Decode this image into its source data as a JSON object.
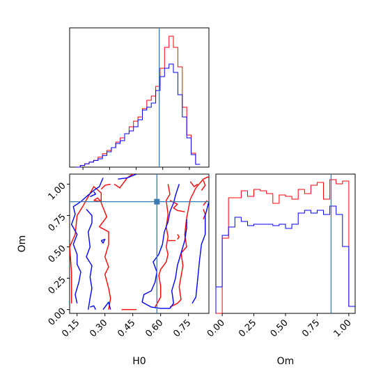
{
  "chart_data": {
    "type": "corner",
    "truth": {
      "H0": 0.58,
      "Om": 0.86,
      "color": "#3a7ab2"
    },
    "series_colors": {
      "red": "#ff0000",
      "blue": "#0000ff"
    },
    "panels": {
      "h0_hist": {
        "type": "step-histogram",
        "xlim": [
          0.075,
          0.86
        ],
        "ylim": [
          0,
          1.0
        ],
        "bin_width": 0.025,
        "bins_start": 0.11,
        "red": [
          0.0,
          0.012,
          0.024,
          0.036,
          0.048,
          0.072,
          0.096,
          0.12,
          0.14,
          0.18,
          0.21,
          0.24,
          0.29,
          0.33,
          0.36,
          0.42,
          0.48,
          0.51,
          0.58,
          0.71,
          0.86,
          0.94,
          0.86,
          0.72,
          0.43,
          0.23,
          0.1,
          0.02
        ],
        "blue": [
          0.0,
          0.012,
          0.024,
          0.036,
          0.048,
          0.06,
          0.084,
          0.11,
          0.14,
          0.17,
          0.19,
          0.24,
          0.26,
          0.29,
          0.34,
          0.41,
          0.43,
          0.46,
          0.55,
          0.65,
          0.71,
          0.74,
          0.68,
          0.52,
          0.36,
          0.21,
          0.09,
          0.02
        ]
      },
      "om_hist": {
        "type": "step-histogram",
        "xlim": [
          -0.05,
          1.05
        ],
        "ylim": [
          0,
          1.0
        ],
        "bin_width": 0.05,
        "bins_start": -0.05,
        "red": [
          0.0,
          0.54,
          0.83,
          0.83,
          0.88,
          0.84,
          0.89,
          0.88,
          0.86,
          0.79,
          0.85,
          0.84,
          0.82,
          0.89,
          0.86,
          0.92,
          0.94,
          0.82,
          0.96,
          0.93,
          0.95,
          0.05
        ],
        "blue": [
          0.19,
          0.56,
          0.62,
          0.69,
          0.66,
          0.63,
          0.64,
          0.64,
          0.64,
          0.63,
          0.64,
          0.61,
          0.64,
          0.72,
          0.74,
          0.72,
          0.74,
          0.71,
          0.77,
          0.71,
          0.48,
          0.05
        ]
      },
      "joint": {
        "type": "contour",
        "xlim": [
          0.11,
          0.86
        ],
        "ylim": [
          -0.03,
          1.08
        ],
        "xlabel": "H0",
        "ylabel": "Om",
        "red_contours": [
          [
            [
              0.12,
              0.05
            ],
            [
              0.12,
              0.3
            ],
            [
              0.11,
              0.5
            ],
            [
              0.14,
              0.6
            ],
            [
              0.15,
              0.75
            ],
            [
              0.18,
              0.82
            ],
            [
              0.21,
              0.9
            ],
            [
              0.24,
              0.98
            ],
            [
              0.28,
              0.93
            ],
            [
              0.28,
              0.85
            ],
            [
              0.31,
              0.74
            ],
            [
              0.27,
              0.66
            ],
            [
              0.32,
              0.62
            ],
            [
              0.32,
              0.52
            ],
            [
              0.3,
              0.42
            ],
            [
              0.32,
              0.34
            ],
            [
              0.3,
              0.28
            ],
            [
              0.32,
              0.17
            ],
            [
              0.33,
              0.09
            ],
            [
              0.32,
              0.0
            ]
          ],
          [
            [
              0.35,
              1.0
            ],
            [
              0.38,
              0.97
            ],
            [
              0.42,
              1.05
            ],
            [
              0.45,
              1.08
            ]
          ],
          [
            [
              0.24,
              0.87
            ],
            [
              0.28,
              0.86
            ],
            [
              0.26,
              0.89
            ],
            [
              0.24,
              0.87
            ]
          ],
          [
            [
              0.28,
              0.96
            ],
            [
              0.3,
              0.99
            ],
            [
              0.33,
              1.0
            ]
          ],
          [
            [
              0.39,
              0.0
            ],
            [
              0.47,
              0.0
            ]
          ],
          [
            [
              0.57,
              0.02
            ],
            [
              0.6,
              0.1
            ],
            [
              0.6,
              0.19
            ],
            [
              0.59,
              0.27
            ],
            [
              0.6,
              0.32
            ],
            [
              0.63,
              0.38
            ],
            [
              0.64,
              0.44
            ],
            [
              0.63,
              0.5
            ],
            [
              0.64,
              0.58
            ],
            [
              0.63,
              0.66
            ],
            [
              0.64,
              0.76
            ],
            [
              0.63,
              0.87
            ],
            [
              0.65,
              0.92
            ],
            [
              0.64,
              1.0
            ]
          ],
          [
            [
              0.65,
              0.02
            ],
            [
              0.69,
              0.05
            ],
            [
              0.71,
              0.08
            ],
            [
              0.7,
              0.18
            ],
            [
              0.72,
              0.35
            ],
            [
              0.71,
              0.45
            ],
            [
              0.74,
              0.5
            ],
            [
              0.73,
              0.6
            ],
            [
              0.74,
              0.73
            ],
            [
              0.76,
              0.88
            ],
            [
              0.79,
              0.97
            ],
            [
              0.83,
              1.04
            ],
            [
              0.86,
              1.06
            ]
          ],
          [
            [
              0.65,
              0.87
            ],
            [
              0.69,
              0.84
            ],
            [
              0.67,
              0.81
            ],
            [
              0.69,
              0.79
            ],
            [
              0.73,
              0.78
            ]
          ],
          [
            [
              0.64,
              0.55
            ],
            [
              0.68,
              0.55
            ]
          ],
          [
            [
              0.69,
              0.6
            ],
            [
              0.7,
              0.58
            ],
            [
              0.69,
              0.56
            ]
          ],
          [
            [
              0.76,
              1.02
            ],
            [
              0.78,
              0.98
            ],
            [
              0.8,
              1.0
            ]
          ],
          [
            [
              0.83,
              0.83
            ],
            [
              0.85,
              0.87
            ]
          ],
          [
            [
              0.82,
              0.95
            ],
            [
              0.84,
              0.99
            ],
            [
              0.83,
              1.03
            ]
          ],
          [
            [
              0.83,
              0.72
            ],
            [
              0.84,
              0.76
            ],
            [
              0.83,
              0.8
            ]
          ]
        ],
        "blue_contours": [
          [
            [
              0.15,
              0.05
            ],
            [
              0.14,
              0.12
            ],
            [
              0.16,
              0.22
            ],
            [
              0.17,
              0.3
            ],
            [
              0.15,
              0.36
            ],
            [
              0.15,
              0.44
            ],
            [
              0.13,
              0.52
            ],
            [
              0.15,
              0.6
            ],
            [
              0.12,
              0.68
            ],
            [
              0.14,
              0.76
            ],
            [
              0.13,
              0.82
            ],
            [
              0.17,
              0.86
            ],
            [
              0.2,
              0.9
            ],
            [
              0.24,
              0.95
            ],
            [
              0.27,
              0.98
            ],
            [
              0.29,
              1.05
            ]
          ],
          [
            [
              0.24,
              0.94
            ],
            [
              0.25,
              0.92
            ],
            [
              0.22,
              0.9
            ]
          ],
          [
            [
              0.28,
              0.55
            ],
            [
              0.3,
              0.56
            ],
            [
              0.29,
              0.53
            ],
            [
              0.28,
              0.55
            ]
          ],
          [
            [
              0.2,
              0.8
            ],
            [
              0.23,
              0.75
            ],
            [
              0.23,
              0.69
            ],
            [
              0.21,
              0.62
            ],
            [
              0.22,
              0.5
            ],
            [
              0.2,
              0.42
            ],
            [
              0.23,
              0.35
            ],
            [
              0.22,
              0.26
            ],
            [
              0.23,
              0.17
            ],
            [
              0.22,
              0.09
            ],
            [
              0.21,
              0.0
            ]
          ],
          [
            [
              0.29,
              0.0
            ],
            [
              0.32,
              0.06
            ],
            [
              0.33,
              0.0
            ]
          ],
          [
            [
              0.22,
              0.02
            ],
            [
              0.24,
              0.03
            ],
            [
              0.25,
              0.0
            ]
          ],
          [
            [
              0.37,
              1.04
            ],
            [
              0.42,
              1.05
            ],
            [
              0.47,
              1.08
            ]
          ],
          [
            [
              0.5,
              0.06
            ],
            [
              0.51,
              0.12
            ],
            [
              0.55,
              0.15
            ],
            [
              0.57,
              0.22
            ],
            [
              0.58,
              0.3
            ],
            [
              0.56,
              0.38
            ],
            [
              0.59,
              0.44
            ],
            [
              0.61,
              0.52
            ],
            [
              0.62,
              0.62
            ],
            [
              0.64,
              0.7
            ],
            [
              0.65,
              0.78
            ],
            [
              0.67,
              0.85
            ],
            [
              0.68,
              0.91
            ],
            [
              0.7,
              1.0
            ]
          ],
          [
            [
              0.5,
              0.06
            ],
            [
              0.55,
              0.02
            ],
            [
              0.6,
              0.01
            ],
            [
              0.65,
              0.01
            ],
            [
              0.67,
              0.05
            ],
            [
              0.66,
              0.15
            ],
            [
              0.68,
              0.25
            ],
            [
              0.69,
              0.35
            ],
            [
              0.71,
              0.45
            ],
            [
              0.73,
              0.55
            ],
            [
              0.74,
              0.65
            ],
            [
              0.74,
              0.72
            ]
          ],
          [
            [
              0.77,
              0.05
            ],
            [
              0.79,
              0.1
            ],
            [
              0.8,
              0.25
            ],
            [
              0.81,
              0.4
            ],
            [
              0.82,
              0.52
            ],
            [
              0.84,
              0.6
            ],
            [
              0.84,
              0.75
            ],
            [
              0.86,
              0.86
            ]
          ]
        ]
      }
    },
    "axes": {
      "h0_ticks": [
        0.15,
        0.3,
        0.45,
        0.6,
        0.75
      ],
      "h0_tick_labels": [
        "0.15",
        "0.30",
        "0.45",
        "0.60",
        "0.75"
      ],
      "om_ticks": [
        0.0,
        0.25,
        0.5,
        0.75,
        1.0
      ],
      "om_tick_labels": [
        "0.00",
        "0.25",
        "0.50",
        "0.75",
        "1.00"
      ],
      "xlabel_left": "H0",
      "xlabel_right": "Om",
      "ylabel_joint": "Om"
    }
  }
}
